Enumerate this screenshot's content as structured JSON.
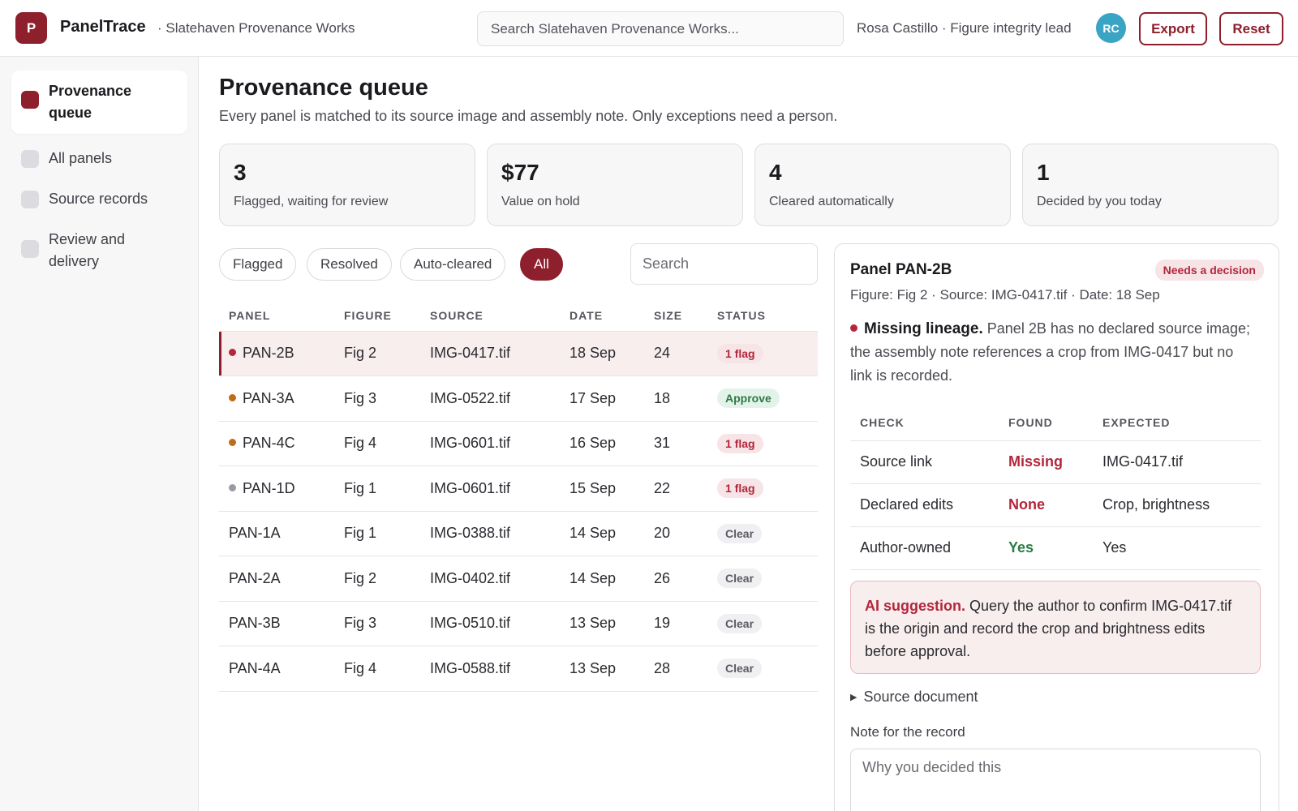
{
  "app": {
    "logo_letter": "P",
    "name": "PanelTrace",
    "org": "· Slatehaven Provenance Works",
    "search_placeholder": "Search Slatehaven Provenance Works...",
    "user": "Rosa Castillo · Figure integrity lead",
    "avatar_initials": "RC",
    "export_label": "Export",
    "reset_label": "Reset"
  },
  "sidebar": {
    "items": [
      {
        "label": "Provenance queue",
        "active": true
      },
      {
        "label": "All panels",
        "active": false
      },
      {
        "label": "Source records",
        "active": false
      },
      {
        "label": "Review and delivery",
        "active": false
      }
    ]
  },
  "main": {
    "title": "Provenance queue",
    "subtitle": "Every panel is matched to its source image and assembly note. Only exceptions need a person.",
    "stats": [
      {
        "value": "3",
        "label": "Flagged, waiting for review"
      },
      {
        "value": "$77",
        "label": "Value on hold"
      },
      {
        "value": "4",
        "label": "Cleared automatically"
      },
      {
        "value": "1",
        "label": "Decided by you today"
      }
    ],
    "filters": [
      "Flagged",
      "Resolved",
      "Auto-cleared",
      "All"
    ],
    "active_filter": "All",
    "search_placeholder": "Search"
  },
  "table": {
    "headers": [
      "PANEL",
      "FIGURE",
      "SOURCE",
      "DATE",
      "SIZE",
      "STATUS"
    ],
    "rows": [
      {
        "panel": "PAN-2B",
        "figure": "Fig 2",
        "source": "IMG-0417.tif",
        "date": "18 Sep",
        "size": "24",
        "status": "1 flag",
        "kind": "flag",
        "dot": "#b3263b",
        "selected": true
      },
      {
        "panel": "PAN-3A",
        "figure": "Fig 3",
        "source": "IMG-0522.tif",
        "date": "17 Sep",
        "size": "18",
        "status": "Approve",
        "kind": "approve",
        "dot": "#c26a1a",
        "selected": false
      },
      {
        "panel": "PAN-4C",
        "figure": "Fig 4",
        "source": "IMG-0601.tif",
        "date": "16 Sep",
        "size": "31",
        "status": "1 flag",
        "kind": "flag",
        "dot": "#c26a1a",
        "selected": false
      },
      {
        "panel": "PAN-1D",
        "figure": "Fig 1",
        "source": "IMG-0601.tif",
        "date": "15 Sep",
        "size": "22",
        "status": "1 flag",
        "kind": "flag",
        "dot": "#9a9aa2",
        "selected": false
      },
      {
        "panel": "PAN-1A",
        "figure": "Fig 1",
        "source": "IMG-0388.tif",
        "date": "14 Sep",
        "size": "20",
        "status": "Clear",
        "kind": "clear",
        "dot": "",
        "selected": false
      },
      {
        "panel": "PAN-2A",
        "figure": "Fig 2",
        "source": "IMG-0402.tif",
        "date": "14 Sep",
        "size": "26",
        "status": "Clear",
        "kind": "clear",
        "dot": "",
        "selected": false
      },
      {
        "panel": "PAN-3B",
        "figure": "Fig 3",
        "source": "IMG-0510.tif",
        "date": "13 Sep",
        "size": "19",
        "status": "Clear",
        "kind": "clear",
        "dot": "",
        "selected": false
      },
      {
        "panel": "PAN-4A",
        "figure": "Fig 4",
        "source": "IMG-0588.tif",
        "date": "13 Sep",
        "size": "28",
        "status": "Clear",
        "kind": "clear",
        "dot": "",
        "selected": false
      }
    ]
  },
  "detail": {
    "title": "Panel PAN-2B",
    "badge": "Needs a decision",
    "meta": "Figure: Fig 2 · Source: IMG-0417.tif · Date: 18 Sep",
    "issue_title": "Missing lineage.",
    "issue_text": "Panel 2B has no declared source image; the assembly note references a crop from IMG-0417 but no link is recorded.",
    "check_headers": [
      "CHECK",
      "FOUND",
      "EXPECTED"
    ],
    "checks": [
      {
        "check": "Source link",
        "found": "Missing",
        "expected": "IMG-0417.tif",
        "state": "bad"
      },
      {
        "check": "Declared edits",
        "found": "None",
        "expected": "Crop, brightness",
        "state": "bad"
      },
      {
        "check": "Author-owned",
        "found": "Yes",
        "expected": "Yes",
        "state": "good"
      }
    ],
    "ai_label": "AI suggestion.",
    "ai_text": "Query the author to confirm IMG-0417.tif is the origin and record the crop and brightness edits before approval.",
    "source_doc": "Source document",
    "note_label": "Note for the record",
    "note_placeholder": "Why you decided this"
  },
  "colors": {
    "accent": "#8e1f2c",
    "flag": "#b3263b",
    "approve": "#2c7a45",
    "avatar": "#3aa4c4"
  }
}
